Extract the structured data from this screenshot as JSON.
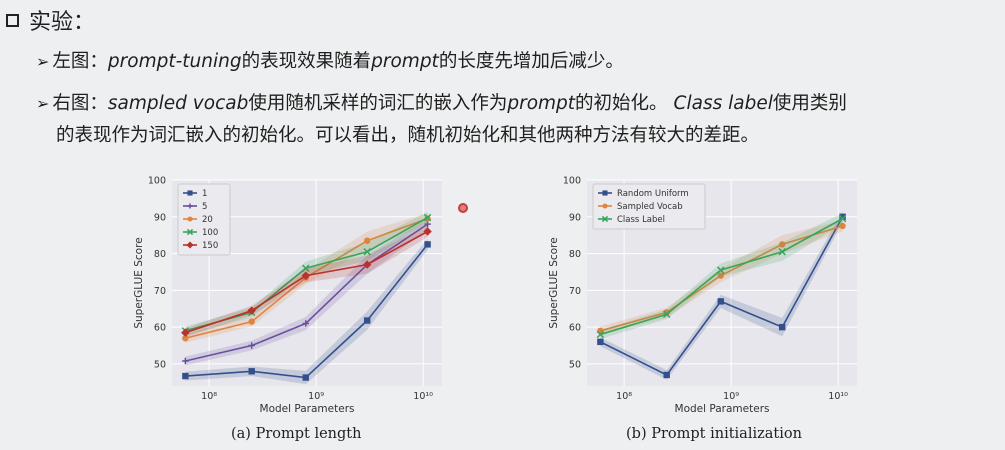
{
  "slide": {
    "title": "实验：",
    "bullets": [
      {
        "parts": [
          "左图：",
          "prompt-tuning",
          "的表现效果随着",
          "prompt",
          "的长度先增加后减少。"
        ]
      },
      {
        "line1": [
          "右图：",
          "sampled vocab",
          "使用随机采样的词汇的嵌入作为",
          "prompt",
          "的初始化。",
          "Class label",
          "使用类别"
        ],
        "line2": "的表现作为词汇嵌入的初始化。可以看出，随机初始化和其他两种方法有较大的差距。"
      }
    ]
  },
  "chart_data": [
    {
      "type": "line",
      "caption": "(a) Prompt length",
      "xlabel": "Model Parameters",
      "ylabel": "SuperGLUE Score",
      "x_scale": "log",
      "x": [
        600000000.0,
        2500000000.0,
        8000000000.0,
        30000000000.0,
        110000000000.0
      ],
      "x_ticks": [
        "10⁹",
        "10¹⁰"
      ],
      "x_tick_labels_shown": [
        "10⁸",
        "10⁹",
        "10¹⁰"
      ],
      "ylim": [
        44,
        100
      ],
      "y_ticks": [
        50,
        60,
        70,
        80,
        90,
        100
      ],
      "grid": true,
      "legend_position": "top-left",
      "series": [
        {
          "name": "1",
          "color": "#34508c",
          "marker": "square",
          "values": [
            46.7,
            48.0,
            46.3,
            61.8,
            82.5
          ]
        },
        {
          "name": "5",
          "color": "#6a4f9e",
          "marker": "plus",
          "values": [
            50.8,
            55.0,
            61.0,
            77.0,
            88.0
          ]
        },
        {
          "name": "20",
          "color": "#e08540",
          "marker": "circle",
          "values": [
            57.0,
            61.5,
            73.5,
            83.5,
            89.5
          ]
        },
        {
          "name": "100",
          "color": "#3aa45a",
          "marker": "x",
          "values": [
            59.0,
            64.0,
            76.0,
            80.5,
            89.8
          ]
        },
        {
          "name": "150",
          "color": "#b8332a",
          "marker": "diamond",
          "values": [
            58.5,
            64.5,
            74.0,
            77.0,
            86.0
          ]
        }
      ]
    },
    {
      "type": "line",
      "caption": "(b) Prompt initialization",
      "xlabel": "Model Parameters",
      "ylabel": "SuperGLUE Score",
      "x_scale": "log",
      "x": [
        600000000.0,
        2500000000.0,
        8000000000.0,
        30000000000.0,
        110000000000.0
      ],
      "x_tick_labels_shown": [
        "10⁸",
        "10⁹",
        "10¹⁰"
      ],
      "ylim": [
        44,
        100
      ],
      "y_ticks": [
        50,
        60,
        70,
        80,
        90,
        100
      ],
      "grid": true,
      "legend_position": "top-left",
      "series": [
        {
          "name": "Random Uniform",
          "color": "#34508c",
          "marker": "square",
          "values": [
            56.0,
            47.0,
            67.0,
            60.0,
            90.0
          ]
        },
        {
          "name": "Sampled Vocab",
          "color": "#e08540",
          "marker": "circle",
          "values": [
            59.0,
            64.0,
            74.0,
            82.5,
            87.5
          ]
        },
        {
          "name": "Class Label",
          "color": "#3aa45a",
          "marker": "x",
          "values": [
            58.0,
            63.5,
            75.5,
            80.5,
            89.5
          ]
        }
      ]
    }
  ]
}
